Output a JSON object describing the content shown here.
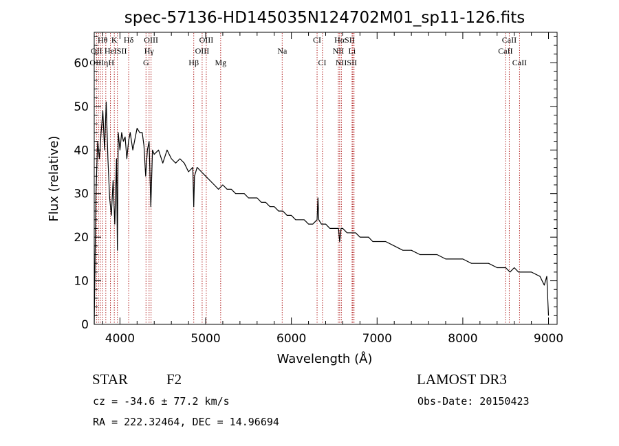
{
  "chart_data": {
    "type": "line",
    "title": "spec-57136-HD145035N124702M01_sp11-126.fits",
    "xlabel": "Wavelength (Å)",
    "ylabel": "Flux (relative)",
    "xlim": [
      3700,
      9100
    ],
    "ylim": [
      0,
      67
    ],
    "x_ticks": [
      4000,
      5000,
      6000,
      7000,
      8000,
      9000
    ],
    "y_ticks": [
      0,
      10,
      20,
      30,
      40,
      50,
      60
    ],
    "grid": false,
    "series": [
      {
        "name": "spectrum",
        "x": [
          3700,
          3720,
          3740,
          3760,
          3780,
          3800,
          3820,
          3840,
          3860,
          3880,
          3900,
          3920,
          3940,
          3960,
          3970,
          3980,
          4000,
          4020,
          4040,
          4060,
          4080,
          4100,
          4120,
          4150,
          4180,
          4200,
          4230,
          4260,
          4280,
          4300,
          4320,
          4340,
          4360,
          4380,
          4400,
          4450,
          4500,
          4550,
          4600,
          4650,
          4700,
          4750,
          4800,
          4850,
          4861,
          4870,
          4900,
          4950,
          5000,
          5050,
          5100,
          5150,
          5200,
          5250,
          5300,
          5350,
          5400,
          5450,
          5500,
          5550,
          5580,
          5600,
          5650,
          5700,
          5750,
          5800,
          5850,
          5900,
          5950,
          6000,
          6050,
          6100,
          6150,
          6200,
          6250,
          6300,
          6310,
          6320,
          6350,
          6400,
          6450,
          6500,
          6550,
          6563,
          6580,
          6600,
          6650,
          6700,
          6750,
          6800,
          6850,
          6900,
          6950,
          7000,
          7100,
          7200,
          7300,
          7400,
          7500,
          7600,
          7700,
          7800,
          7900,
          8000,
          8100,
          8200,
          8300,
          8400,
          8500,
          8550,
          8600,
          8650,
          8700,
          8800,
          8900,
          8950,
          8980,
          9000
        ],
        "values": [
          0,
          30,
          42,
          38,
          44,
          49,
          40,
          51,
          38,
          29,
          25,
          33,
          23,
          38,
          17,
          44,
          40,
          44,
          42,
          43,
          38,
          42,
          44,
          40,
          43,
          45,
          44,
          44,
          41,
          34,
          40,
          42,
          27,
          40,
          39,
          40,
          37,
          40,
          38,
          37,
          38,
          37,
          35,
          36,
          27,
          34,
          36,
          35,
          34,
          33,
          32,
          31,
          32,
          31,
          31,
          30,
          30,
          30,
          29,
          29,
          29,
          29,
          28,
          28,
          27,
          27,
          26,
          26,
          25,
          25,
          24,
          24,
          24,
          23,
          23,
          24,
          29,
          24,
          23,
          23,
          22,
          22,
          22,
          19,
          22,
          22,
          21,
          21,
          21,
          20,
          20,
          20,
          19,
          19,
          19,
          18,
          17,
          17,
          16,
          16,
          16,
          15,
          15,
          15,
          14,
          14,
          14,
          13,
          13,
          12,
          13,
          12,
          12,
          12,
          11,
          9,
          11,
          2
        ]
      }
    ],
    "annotations": [
      {
        "text": "Hθ",
        "x": 3798,
        "row": 1
      },
      {
        "text": "K",
        "x": 3934,
        "row": 1
      },
      {
        "text": "Hδ",
        "x": 4102,
        "row": 1
      },
      {
        "text": "OIII",
        "x": 4363,
        "row": 1
      },
      {
        "text": "OIII",
        "x": 5007,
        "row": 1
      },
      {
        "text": "CI",
        "x": 6300,
        "row": 1
      },
      {
        "text": "HαSII",
        "x": 6620,
        "row": 1
      },
      {
        "text": "CaII",
        "x": 8542,
        "row": 1
      },
      {
        "text": "OII",
        "x": 3727,
        "row": 2
      },
      {
        "text": "HeISII",
        "x": 3950,
        "row": 2
      },
      {
        "text": "Hγ",
        "x": 4340,
        "row": 2
      },
      {
        "text": "OIII",
        "x": 4959,
        "row": 2
      },
      {
        "text": "Na",
        "x": 5893,
        "row": 2
      },
      {
        "text": "NII",
        "x": 6548,
        "row": 2
      },
      {
        "text": "Li",
        "x": 6708,
        "row": 2
      },
      {
        "text": "CaII",
        "x": 8498,
        "row": 2
      },
      {
        "text": "OIIIηH",
        "x": 3790,
        "row": 3
      },
      {
        "text": "G",
        "x": 4304,
        "row": 3
      },
      {
        "text": "Hβ",
        "x": 4861,
        "row": 3
      },
      {
        "text": "Mg",
        "x": 5175,
        "row": 3
      },
      {
        "text": "CI",
        "x": 6360,
        "row": 3
      },
      {
        "text": "NIISII",
        "x": 6640,
        "row": 3
      },
      {
        "text": "CaII",
        "x": 8662,
        "row": 3
      }
    ],
    "line_markers": [
      3727,
      3750,
      3771,
      3798,
      3835,
      3889,
      3934,
      3970,
      4102,
      4304,
      4340,
      4363,
      4861,
      4959,
      5007,
      5175,
      5893,
      6300,
      6363,
      6548,
      6563,
      6583,
      6708,
      6717,
      6731,
      8498,
      8542,
      8662
    ]
  },
  "info": {
    "class_label": "STAR",
    "subclass": "F2",
    "survey": "LAMOST DR3",
    "velocity": "cz = -34.6 ± 77.2 km/s",
    "obs_date": "Obs-Date: 20150423",
    "coords": "RA = 222.32464, DEC =  14.96694"
  },
  "colors": {
    "spectrum": "#000000",
    "markers": "#b22222",
    "axes": "#000000"
  }
}
